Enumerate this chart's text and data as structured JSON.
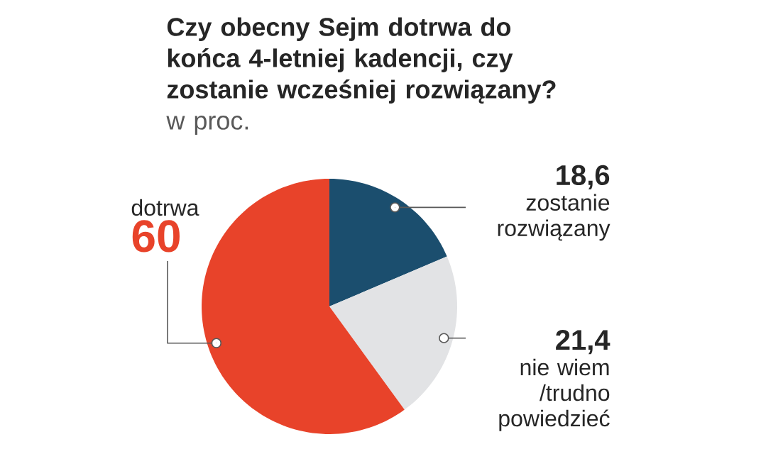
{
  "chart_data": {
    "type": "pie",
    "title": "Czy obecny Sejm dotrwa do końca 4-letniej kadencji, czy zostanie wcześniej rozwiązany?",
    "subtitle": "w proc.",
    "categories": [
      "zostanie rozwiązany",
      "nie wiem /trudno powiedzieć",
      "dotrwa"
    ],
    "values": [
      18.6,
      21.4,
      60
    ],
    "value_labels": [
      "18,6",
      "21,4",
      "60"
    ],
    "colors": [
      "#1b4e6e",
      "#e2e3e5",
      "#e8432a"
    ]
  }
}
